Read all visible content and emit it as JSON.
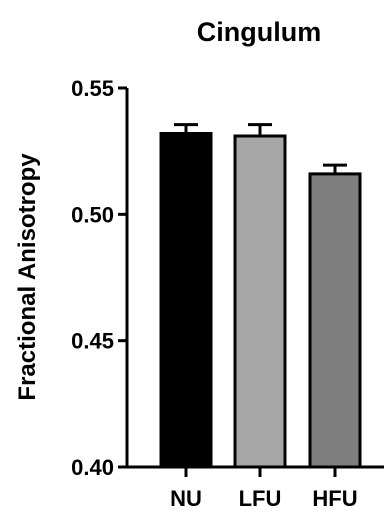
{
  "chart_data": {
    "type": "bar",
    "title": "Cingulum",
    "xlabel": "",
    "ylabel": "Fractional Anisotropy",
    "categories": [
      "NU",
      "LFU",
      "HFU"
    ],
    "values": [
      0.532,
      0.531,
      0.516
    ],
    "errors": [
      0.0035,
      0.0045,
      0.0035
    ],
    "ylim": [
      0.4,
      0.55
    ],
    "yticks": [
      0.4,
      0.45,
      0.5,
      0.55
    ],
    "ytick_labels": [
      "0.40",
      "0.45",
      "0.50",
      "0.55"
    ],
    "bar_colors": [
      "#000000",
      "#a6a6a6",
      "#7f7f7f"
    ],
    "grid": false,
    "legend": "none"
  }
}
